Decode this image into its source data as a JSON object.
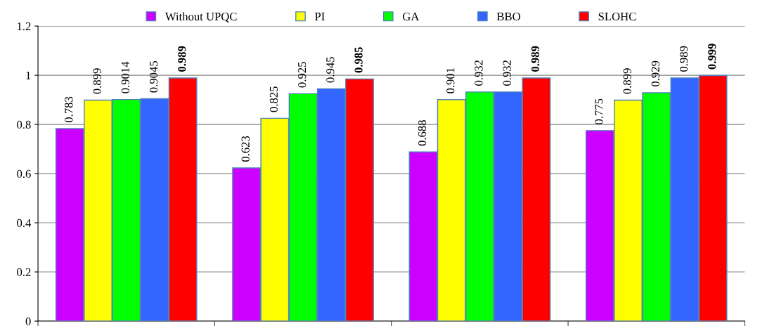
{
  "chart_data": {
    "type": "bar",
    "categories": [
      null,
      null,
      null,
      null
    ],
    "series": [
      {
        "name": "Without UPQC",
        "color": "#cc00ff",
        "values": [
          0.783,
          0.623,
          0.688,
          0.775
        ]
      },
      {
        "name": "PI",
        "color": "#ffff00",
        "values": [
          0.899,
          0.825,
          0.901,
          0.899
        ]
      },
      {
        "name": "GA",
        "color": "#00ff00",
        "values": [
          0.9014,
          0.925,
          0.932,
          0.929
        ]
      },
      {
        "name": "BBO",
        "color": "#3366ff",
        "values": [
          0.9045,
          0.945,
          0.932,
          0.989
        ]
      },
      {
        "name": "SLOHC",
        "color": "#ff0000",
        "values": [
          0.989,
          0.985,
          0.989,
          0.999
        ]
      }
    ],
    "ylim": [
      0,
      1.2
    ],
    "yticks": [
      0,
      0.2,
      0.4,
      0.6,
      0.8,
      1,
      1.2
    ],
    "grid": "y",
    "legend": "top",
    "data_labels": true
  }
}
